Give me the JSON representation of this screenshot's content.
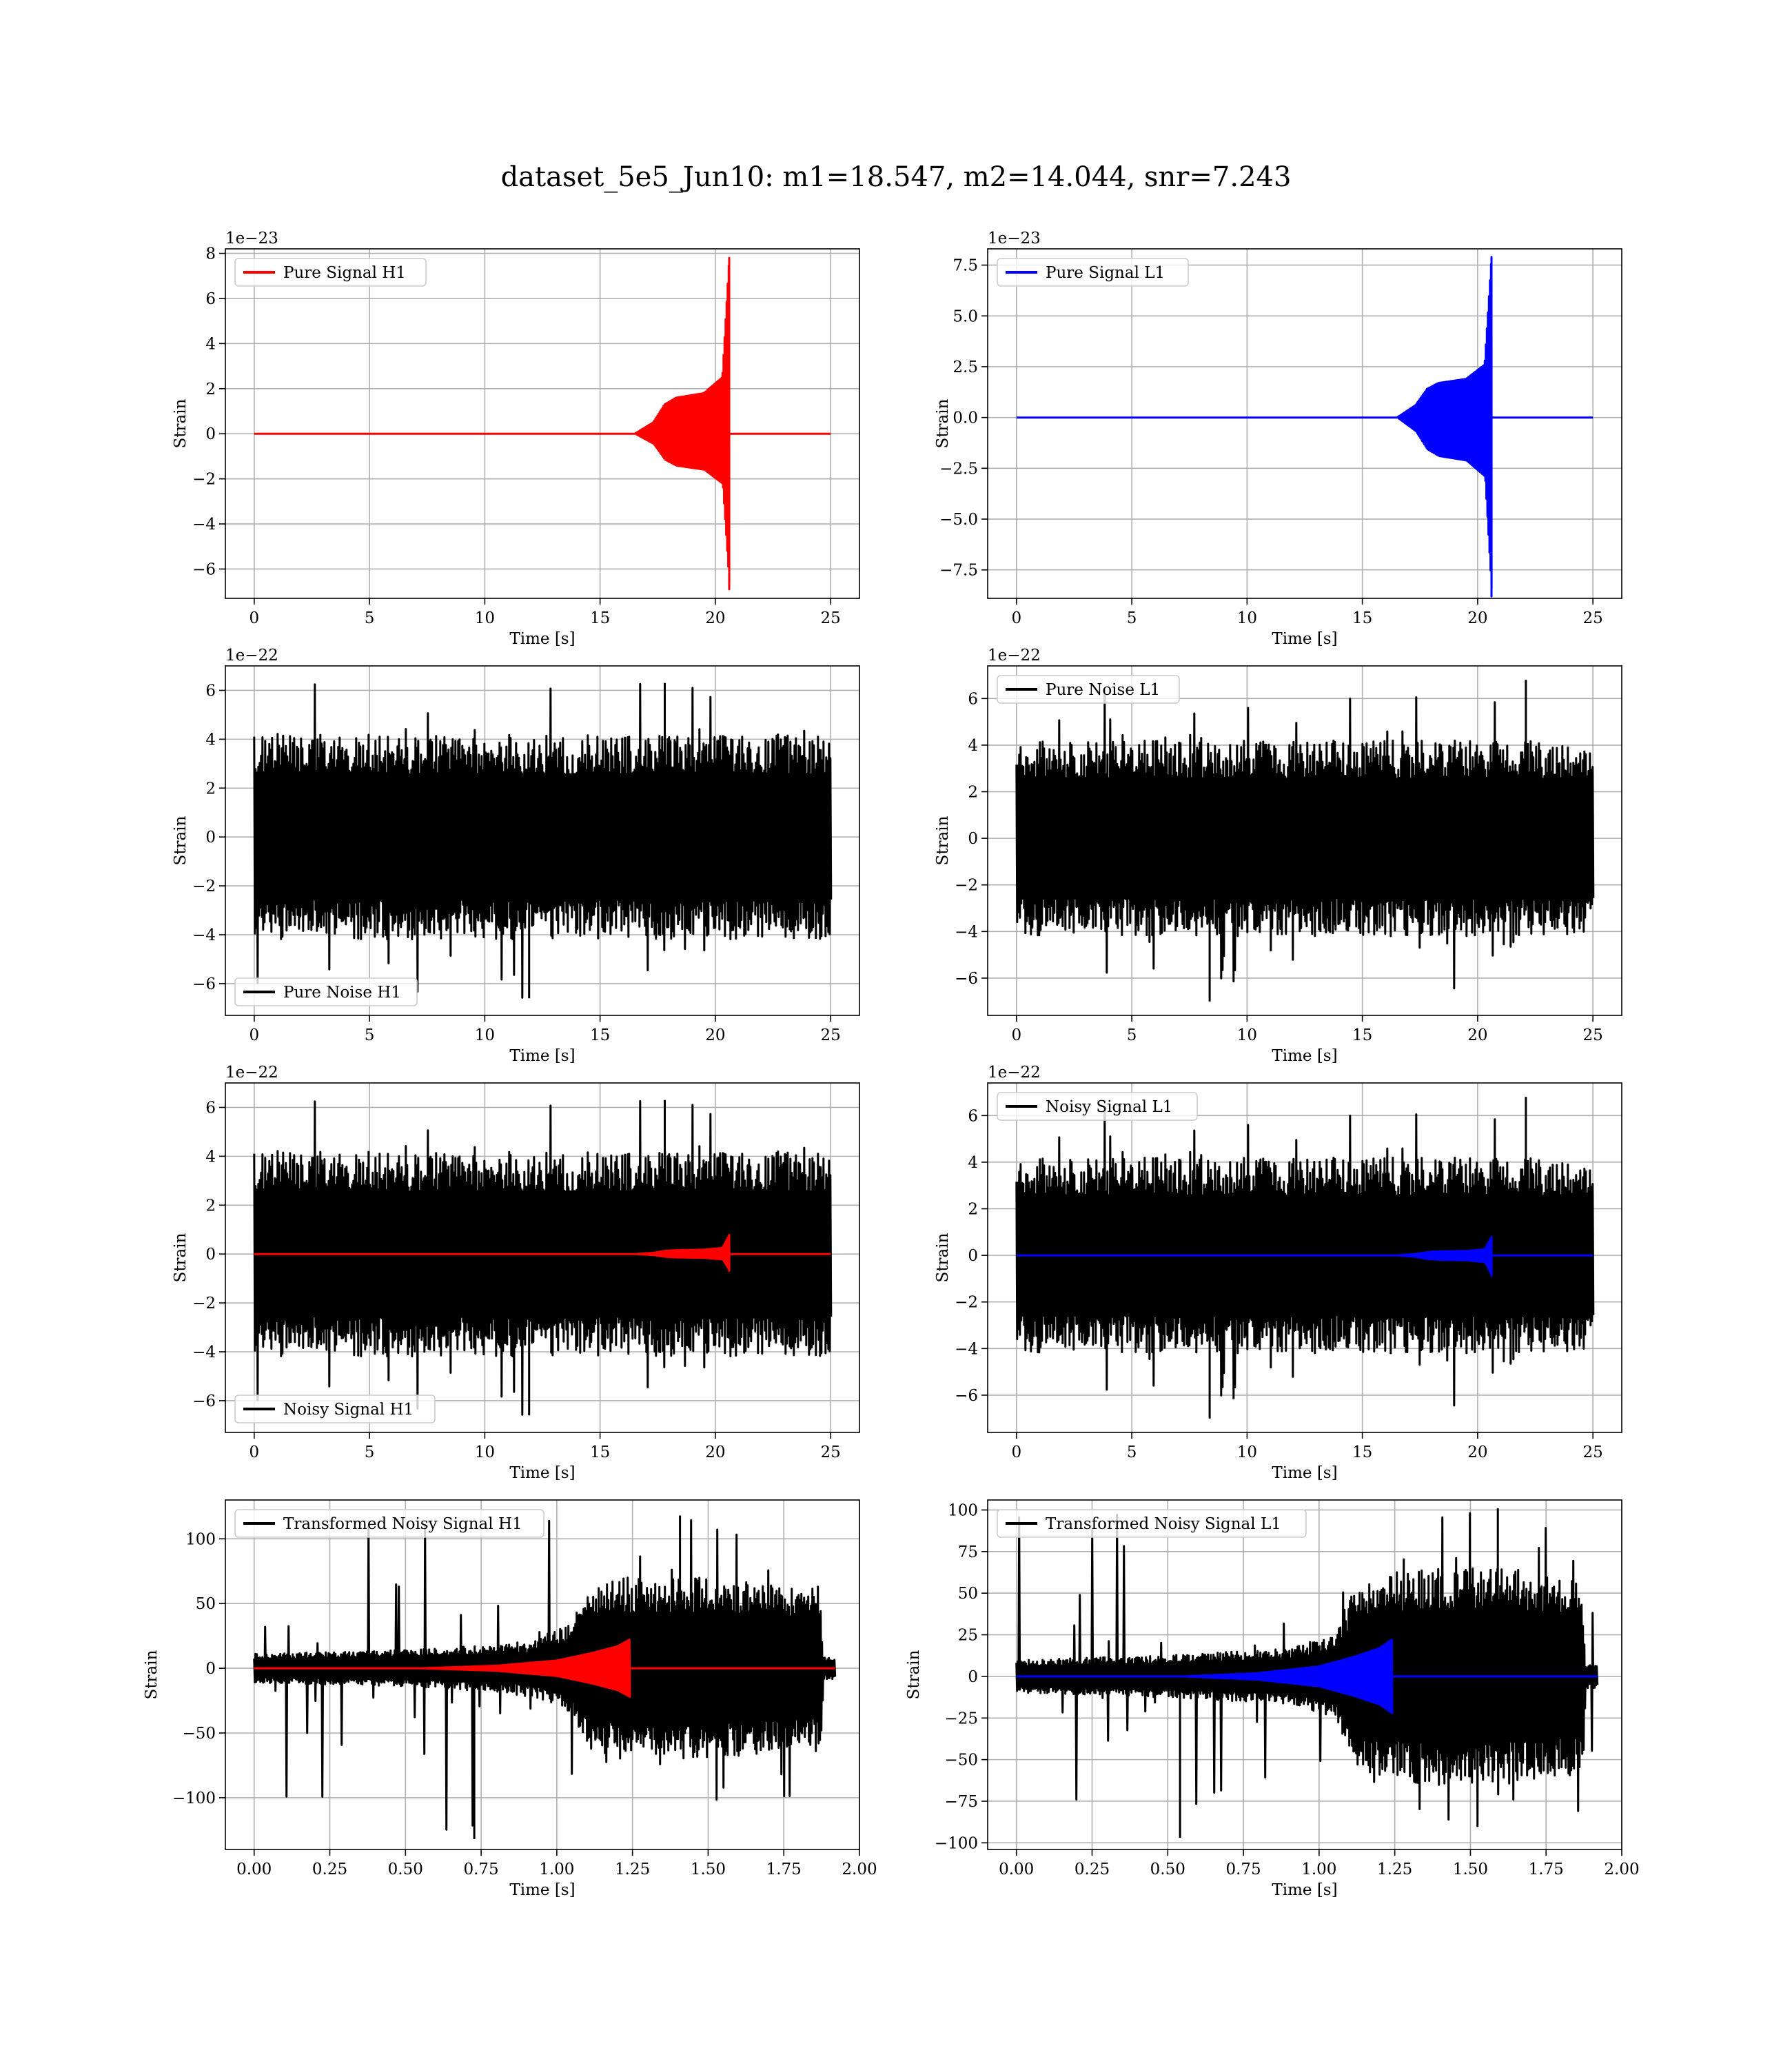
{
  "figure": {
    "title": "dataset_5e5_Jun10: m1=18.547, m2=14.044, snr=7.243"
  },
  "colors": {
    "h1_signal": "#ff0000",
    "l1_signal": "#0000ff",
    "noise": "#000000",
    "grid": "#b0b0b0"
  },
  "chart_data": [
    {
      "id": "pure-signal-h1",
      "type": "line",
      "row": 0,
      "col": 0,
      "xlabel": "Time [s]",
      "ylabel": "Strain",
      "offset_text": "1e−23",
      "xlim": [
        -1.25,
        26.25
      ],
      "ylim": [
        -7.3,
        8.2
      ],
      "xticks": [
        0,
        5,
        10,
        15,
        20,
        25
      ],
      "xtick_labels": [
        "0",
        "5",
        "10",
        "15",
        "20",
        "25"
      ],
      "yticks": [
        -6,
        -4,
        -2,
        0,
        2,
        4,
        6,
        8
      ],
      "ytick_labels": [
        "−6",
        "−4",
        "−2",
        "0",
        "2",
        "4",
        "6",
        "8"
      ],
      "grid": true,
      "legend_position": "upper left",
      "series": [
        {
          "name": "Pure Signal H1",
          "kind": "chirp",
          "color": "#ff0000",
          "x_start": 0,
          "x_end": 25,
          "onset": 16.5,
          "merger": 20.6,
          "plateau": 1.6,
          "peak_pos": 7.8,
          "peak_neg": -6.9,
          "envelope": [
            [
              16.5,
              0
            ],
            [
              17.3,
              0.5
            ],
            [
              17.8,
              1.3
            ],
            [
              18.3,
              1.6
            ],
            [
              19.5,
              1.8
            ],
            [
              20.3,
              2.5
            ],
            [
              20.6,
              7.8
            ]
          ]
        }
      ]
    },
    {
      "id": "pure-signal-l1",
      "type": "line",
      "row": 0,
      "col": 1,
      "xlabel": "Time [s]",
      "ylabel": "Strain",
      "offset_text": "1e−23",
      "xlim": [
        -1.25,
        26.25
      ],
      "ylim": [
        -8.9,
        8.3
      ],
      "xticks": [
        0,
        5,
        10,
        15,
        20,
        25
      ],
      "xtick_labels": [
        "0",
        "5",
        "10",
        "15",
        "20",
        "25"
      ],
      "yticks": [
        -7.5,
        -5,
        -2.5,
        0,
        2.5,
        5,
        7.5
      ],
      "ytick_labels": [
        "−7.5",
        "−5.0",
        "−2.5",
        "0.0",
        "2.5",
        "5.0",
        "7.5"
      ],
      "grid": true,
      "legend_position": "upper left",
      "series": [
        {
          "name": "Pure Signal L1",
          "kind": "chirp",
          "color": "#0000ff",
          "x_start": 0,
          "x_end": 25,
          "onset": 16.5,
          "merger": 20.6,
          "plateau": 1.7,
          "peak_pos": 7.9,
          "peak_neg": -8.8,
          "envelope": [
            [
              16.5,
              0
            ],
            [
              17.3,
              0.6
            ],
            [
              17.8,
              1.4
            ],
            [
              18.3,
              1.7
            ],
            [
              19.5,
              1.9
            ],
            [
              20.3,
              2.6
            ],
            [
              20.6,
              7.9
            ]
          ]
        }
      ]
    },
    {
      "id": "pure-noise-h1",
      "type": "line",
      "row": 1,
      "col": 0,
      "xlabel": "Time [s]",
      "ylabel": "Strain",
      "offset_text": "1e−22",
      "xlim": [
        -1.25,
        26.25
      ],
      "ylim": [
        -7.3,
        7.0
      ],
      "xticks": [
        0,
        5,
        10,
        15,
        20,
        25
      ],
      "xtick_labels": [
        "0",
        "5",
        "10",
        "15",
        "20",
        "25"
      ],
      "yticks": [
        -6,
        -4,
        -2,
        0,
        2,
        4,
        6
      ],
      "ytick_labels": [
        "−6",
        "−4",
        "−2",
        "0",
        "2",
        "4",
        "6"
      ],
      "grid": true,
      "legend_position": "lower left",
      "series": [
        {
          "name": "Pure Noise H1",
          "kind": "noise",
          "color": "#000000",
          "x_start": 0,
          "x_end": 25,
          "band": 3.0,
          "spike_max": 6.3,
          "spike_min": -6.6,
          "seed": 11
        }
      ]
    },
    {
      "id": "pure-noise-l1",
      "type": "line",
      "row": 1,
      "col": 1,
      "xlabel": "Time [s]",
      "ylabel": "Strain",
      "offset_text": "1e−22",
      "xlim": [
        -1.25,
        26.25
      ],
      "ylim": [
        -7.6,
        7.4
      ],
      "xticks": [
        0,
        5,
        10,
        15,
        20,
        25
      ],
      "xtick_labels": [
        "0",
        "5",
        "10",
        "15",
        "20",
        "25"
      ],
      "yticks": [
        -6,
        -4,
        -2,
        0,
        2,
        4,
        6
      ],
      "ytick_labels": [
        "−6",
        "−4",
        "−2",
        "0",
        "2",
        "4",
        "6"
      ],
      "grid": true,
      "legend_position": "upper left",
      "series": [
        {
          "name": "Pure Noise L1",
          "kind": "noise",
          "color": "#000000",
          "x_start": 0,
          "x_end": 25,
          "band": 3.0,
          "spike_max": 6.8,
          "spike_min": -7.0,
          "seed": 23
        }
      ]
    },
    {
      "id": "noisy-signal-h1",
      "type": "line",
      "row": 2,
      "col": 0,
      "xlabel": "Time [s]",
      "ylabel": "Strain",
      "offset_text": "1e−22",
      "xlim": [
        -1.25,
        26.25
      ],
      "ylim": [
        -7.3,
        7.0
      ],
      "xticks": [
        0,
        5,
        10,
        15,
        20,
        25
      ],
      "xtick_labels": [
        "0",
        "5",
        "10",
        "15",
        "20",
        "25"
      ],
      "yticks": [
        -6,
        -4,
        -2,
        0,
        2,
        4,
        6
      ],
      "ytick_labels": [
        "−6",
        "−4",
        "−2",
        "0",
        "2",
        "4",
        "6"
      ],
      "grid": true,
      "legend_position": "lower left",
      "series": [
        {
          "name": "Noisy Signal H1",
          "kind": "noise",
          "color": "#000000",
          "x_start": 0,
          "x_end": 25,
          "band": 3.0,
          "spike_max": 6.3,
          "spike_min": -6.6,
          "seed": 11
        },
        {
          "kind": "chirp",
          "color": "#ff0000",
          "x_start": 0,
          "x_end": 25,
          "onset": 16.5,
          "merger": 20.6,
          "plateau": 0.16,
          "peak_pos": 0.78,
          "peak_neg": -0.69,
          "envelope": [
            [
              16.5,
              0
            ],
            [
              17.3,
              0.05
            ],
            [
              17.8,
              0.13
            ],
            [
              18.3,
              0.16
            ],
            [
              19.5,
              0.18
            ],
            [
              20.3,
              0.25
            ],
            [
              20.6,
              0.78
            ]
          ]
        }
      ]
    },
    {
      "id": "noisy-signal-l1",
      "type": "line",
      "row": 2,
      "col": 1,
      "xlabel": "Time [s]",
      "ylabel": "Strain",
      "offset_text": "1e−22",
      "xlim": [
        -1.25,
        26.25
      ],
      "ylim": [
        -7.6,
        7.4
      ],
      "xticks": [
        0,
        5,
        10,
        15,
        20,
        25
      ],
      "xtick_labels": [
        "0",
        "5",
        "10",
        "15",
        "20",
        "25"
      ],
      "yticks": [
        -6,
        -4,
        -2,
        0,
        2,
        4,
        6
      ],
      "ytick_labels": [
        "−6",
        "−4",
        "−2",
        "0",
        "2",
        "4",
        "6"
      ],
      "grid": true,
      "legend_position": "upper left",
      "series": [
        {
          "name": "Noisy Signal L1",
          "kind": "noise",
          "color": "#000000",
          "x_start": 0,
          "x_end": 25,
          "band": 3.0,
          "spike_max": 6.8,
          "spike_min": -7.0,
          "seed": 23
        },
        {
          "kind": "chirp",
          "color": "#0000ff",
          "x_start": 0,
          "x_end": 25,
          "onset": 16.5,
          "merger": 20.6,
          "plateau": 0.17,
          "peak_pos": 0.79,
          "peak_neg": -0.88,
          "envelope": [
            [
              16.5,
              0
            ],
            [
              17.3,
              0.06
            ],
            [
              17.8,
              0.14
            ],
            [
              18.3,
              0.17
            ],
            [
              19.5,
              0.19
            ],
            [
              20.3,
              0.26
            ],
            [
              20.6,
              0.79
            ]
          ]
        }
      ]
    },
    {
      "id": "transformed-noisy-signal-h1",
      "type": "line",
      "row": 3,
      "col": 0,
      "xlabel": "Time [s]",
      "ylabel": "Strain",
      "offset_text": "",
      "xlim": [
        -0.095,
        2.0
      ],
      "ylim": [
        -140,
        130
      ],
      "xticks": [
        0,
        0.25,
        0.5,
        0.75,
        1.0,
        1.25,
        1.5,
        1.75,
        2.0
      ],
      "xtick_labels": [
        "0.00",
        "0.25",
        "0.50",
        "0.75",
        "1.00",
        "1.25",
        "1.50",
        "1.75",
        "2.00"
      ],
      "yticks": [
        -100,
        -50,
        0,
        50,
        100
      ],
      "ytick_labels": [
        "−100",
        "−50",
        "0",
        "50",
        "100"
      ],
      "grid": true,
      "legend_position": "upper left",
      "series": [
        {
          "name": "Transformed Noisy Signal H1",
          "kind": "tnoise",
          "color": "#000000",
          "x_start": 0,
          "x_end": 1.92,
          "envelope": [
            [
              0,
              8
            ],
            [
              0.5,
              10
            ],
            [
              0.9,
              14
            ],
            [
              1.05,
              25
            ],
            [
              1.1,
              45
            ],
            [
              1.2,
              50
            ],
            [
              1.5,
              50
            ],
            [
              1.87,
              45
            ],
            [
              1.88,
              6
            ],
            [
              1.92,
              6
            ]
          ],
          "spike_max": 118,
          "spike_min": -132,
          "seed": 7
        },
        {
          "kind": "chirp",
          "color": "#ff0000",
          "x_start": 0,
          "x_end": 1.92,
          "onset": 0.55,
          "merger": 1.24,
          "plateau": 12,
          "peak_pos": 22,
          "peak_neg": -22,
          "envelope": [
            [
              0.55,
              0
            ],
            [
              0.8,
              2
            ],
            [
              1.0,
              6
            ],
            [
              1.12,
              12
            ],
            [
              1.2,
              17
            ],
            [
              1.24,
              22
            ]
          ]
        }
      ]
    },
    {
      "id": "transformed-noisy-signal-l1",
      "type": "line",
      "row": 3,
      "col": 1,
      "xlabel": "Time [s]",
      "ylabel": "Strain",
      "offset_text": "",
      "xlim": [
        -0.095,
        2.0
      ],
      "ylim": [
        -104,
        106
      ],
      "xticks": [
        0,
        0.25,
        0.5,
        0.75,
        1.0,
        1.25,
        1.5,
        1.75,
        2.0
      ],
      "xtick_labels": [
        "0.00",
        "0.25",
        "0.50",
        "0.75",
        "1.00",
        "1.25",
        "1.50",
        "1.75",
        "2.00"
      ],
      "yticks": [
        -100,
        -75,
        -50,
        -25,
        0,
        25,
        50,
        75,
        100
      ],
      "ytick_labels": [
        "−100",
        "−75",
        "−50",
        "−25",
        "0",
        "25",
        "50",
        "75",
        "100"
      ],
      "grid": true,
      "legend_position": "upper left",
      "series": [
        {
          "name": "Transformed Noisy Signal L1",
          "kind": "tnoise",
          "color": "#000000",
          "x_start": 0,
          "x_end": 1.92,
          "envelope": [
            [
              0,
              7
            ],
            [
              0.5,
              9
            ],
            [
              0.9,
              12
            ],
            [
              1.05,
              18
            ],
            [
              1.12,
              40
            ],
            [
              1.2,
              45
            ],
            [
              1.5,
              48
            ],
            [
              1.87,
              42
            ],
            [
              1.88,
              5
            ],
            [
              1.92,
              5
            ]
          ],
          "spike_max": 101,
          "spike_min": -97,
          "seed": 19
        },
        {
          "kind": "chirp",
          "color": "#0000ff",
          "x_start": 0,
          "x_end": 1.92,
          "onset": 0.55,
          "merger": 1.24,
          "plateau": 12,
          "peak_pos": 22,
          "peak_neg": -22,
          "envelope": [
            [
              0.55,
              0
            ],
            [
              0.8,
              2
            ],
            [
              1.0,
              6
            ],
            [
              1.12,
              12
            ],
            [
              1.2,
              17
            ],
            [
              1.24,
              22
            ]
          ]
        }
      ]
    }
  ]
}
